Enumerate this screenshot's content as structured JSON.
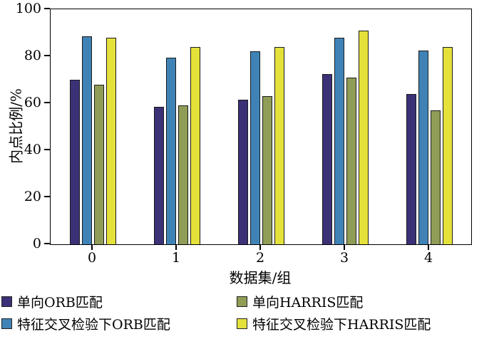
{
  "chart_data": {
    "type": "bar",
    "title": "",
    "xlabel": "数据集/组",
    "ylabel": "内点比例/%",
    "categories": [
      "0",
      "1",
      "2",
      "3",
      "4"
    ],
    "series": [
      {
        "name": "单向ORB匹配",
        "color": "#3b3177",
        "values": [
          70,
          58.5,
          61.5,
          72.5,
          64
        ]
      },
      {
        "name": "特征交叉检验下ORB匹配",
        "color": "#3f83b6",
        "values": [
          88.5,
          79.5,
          82,
          88,
          82.5
        ]
      },
      {
        "name": "单向HARRIS匹配",
        "color": "#8f9d56",
        "values": [
          68,
          59,
          63,
          71,
          57
        ]
      },
      {
        "name": "特征交叉检验下HARRIS匹配",
        "color": "#e5e13b",
        "values": [
          88,
          84,
          84,
          91,
          84
        ]
      }
    ],
    "ylim": [
      0,
      100
    ],
    "yticks": [
      0,
      20,
      40,
      60,
      80,
      100
    ],
    "grid": false,
    "legend_position": "bottom",
    "legend_columns": 2,
    "legend_order": [
      0,
      2,
      1,
      3
    ]
  }
}
